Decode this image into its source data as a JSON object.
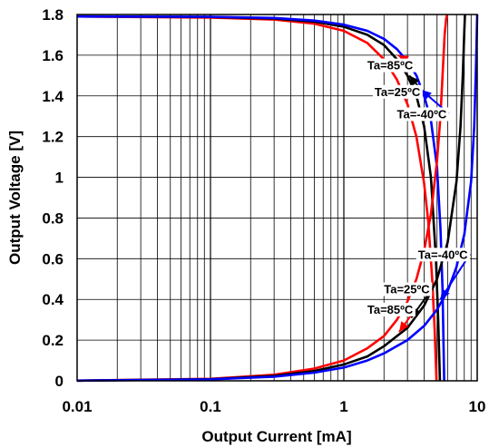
{
  "chart_data": {
    "type": "line",
    "title": "",
    "xlabel": "Output Current [mA]",
    "ylabel": "Output Voltage [V]",
    "x_scale": "log",
    "xlim": [
      0.01,
      10
    ],
    "ylim": [
      0,
      1.8
    ],
    "x_ticks": [
      0.01,
      0.1,
      1,
      10
    ],
    "x_tick_labels": [
      "0.01",
      "0.1",
      "1",
      "10"
    ],
    "y_ticks": [
      0,
      0.2,
      0.4,
      0.6,
      0.8,
      1,
      1.2,
      1.4,
      1.6,
      1.8
    ],
    "y_tick_labels": [
      "0",
      "0.2",
      "0.4",
      "0.6",
      "0.8",
      "1",
      "1.2",
      "1.4",
      "1.6",
      "1.8"
    ],
    "grid": true,
    "legend": "none",
    "series_colors": {
      "85": "#ff0000",
      "25": "#000000",
      "-40": "#0000ff"
    },
    "series": [
      {
        "group": "high-side",
        "temp": "85",
        "color": "#ff0000",
        "x": [
          0.01,
          0.1,
          0.3,
          0.6,
          1.0,
          1.5,
          2.0,
          2.5,
          3.0,
          3.5,
          4.0,
          4.3,
          4.6,
          4.8,
          4.9,
          4.95
        ],
        "y": [
          1.79,
          1.785,
          1.775,
          1.755,
          1.72,
          1.66,
          1.58,
          1.48,
          1.36,
          1.2,
          0.97,
          0.78,
          0.5,
          0.25,
          0.08,
          0
        ]
      },
      {
        "group": "high-side",
        "temp": "25",
        "color": "#000000",
        "x": [
          0.01,
          0.1,
          0.3,
          0.6,
          1.0,
          1.5,
          2.0,
          2.5,
          3.0,
          3.5,
          4.0,
          4.5,
          4.9,
          5.1,
          5.2,
          5.25
        ],
        "y": [
          1.79,
          1.788,
          1.78,
          1.765,
          1.74,
          1.7,
          1.65,
          1.58,
          1.5,
          1.4,
          1.25,
          1.0,
          0.6,
          0.3,
          0.1,
          0
        ]
      },
      {
        "group": "high-side",
        "temp": "-40",
        "color": "#0000ff",
        "x": [
          0.01,
          0.1,
          0.3,
          0.6,
          1.0,
          1.5,
          2.0,
          2.5,
          3.0,
          3.5,
          4.0,
          4.5,
          5.0,
          5.3,
          5.5,
          5.6,
          5.65
        ],
        "y": [
          1.79,
          1.789,
          1.783,
          1.77,
          1.75,
          1.72,
          1.68,
          1.63,
          1.57,
          1.5,
          1.4,
          1.28,
          1.05,
          0.75,
          0.45,
          0.15,
          0
        ]
      },
      {
        "group": "low-side",
        "temp": "85",
        "color": "#ff0000",
        "x": [
          0.01,
          0.1,
          0.3,
          0.6,
          1.0,
          1.5,
          2.0,
          2.5,
          3.0,
          3.5,
          4.0,
          4.5,
          5.0,
          5.3,
          5.5,
          5.7,
          5.85,
          5.95
        ],
        "y": [
          0.001,
          0.01,
          0.03,
          0.06,
          0.1,
          0.16,
          0.22,
          0.3,
          0.39,
          0.5,
          0.64,
          0.82,
          1.08,
          1.3,
          1.5,
          1.7,
          1.78,
          1.8
        ]
      },
      {
        "group": "low-side",
        "temp": "25",
        "color": "#000000",
        "x": [
          0.01,
          0.1,
          0.3,
          0.6,
          1.0,
          1.5,
          2.0,
          3.0,
          4.0,
          5.0,
          6.0,
          7.0,
          7.5,
          7.8,
          8.0,
          8.1
        ],
        "y": [
          0.001,
          0.008,
          0.024,
          0.048,
          0.08,
          0.12,
          0.17,
          0.26,
          0.37,
          0.5,
          0.68,
          0.98,
          1.25,
          1.5,
          1.72,
          1.8
        ]
      },
      {
        "group": "low-side",
        "temp": "-40",
        "color": "#0000ff",
        "x": [
          0.01,
          0.1,
          0.3,
          0.6,
          1.0,
          1.5,
          2.0,
          3.0,
          4.0,
          5.0,
          6.0,
          7.0,
          8.0,
          9.0,
          9.5,
          9.8,
          10.0
        ],
        "y": [
          0.001,
          0.007,
          0.02,
          0.04,
          0.065,
          0.1,
          0.135,
          0.2,
          0.27,
          0.35,
          0.44,
          0.56,
          0.72,
          0.98,
          1.25,
          1.55,
          1.8
        ]
      }
    ],
    "annotations": [
      {
        "text": "Ta=85ºC",
        "color": "#ff0000",
        "x": 1.5,
        "y": 1.53,
        "tip_x": 2.55,
        "tip_y": 1.6
      },
      {
        "text": "Ta=25ºC",
        "color": "#000000",
        "x": 1.7,
        "y": 1.4,
        "tip_x": 3.1,
        "tip_y": 1.5
      },
      {
        "text": "Ta=-40ºC",
        "color": "#0000ff",
        "x": 2.5,
        "y": 1.29,
        "tip_x": 3.8,
        "tip_y": 1.43
      },
      {
        "text": "Ta=-40ºC",
        "color": "#0000ff",
        "x": 3.6,
        "y": 0.6,
        "tip_x": 5.3,
        "tip_y": 0.4
      },
      {
        "text": "Ta=25ºC",
        "color": "#000000",
        "x": 2.0,
        "y": 0.43,
        "tip_x": 3.2,
        "tip_y": 0.31
      },
      {
        "text": "Ta=85ºC",
        "color": "#ff0000",
        "x": 1.5,
        "y": 0.33,
        "tip_x": 2.6,
        "tip_y": 0.24
      }
    ]
  }
}
